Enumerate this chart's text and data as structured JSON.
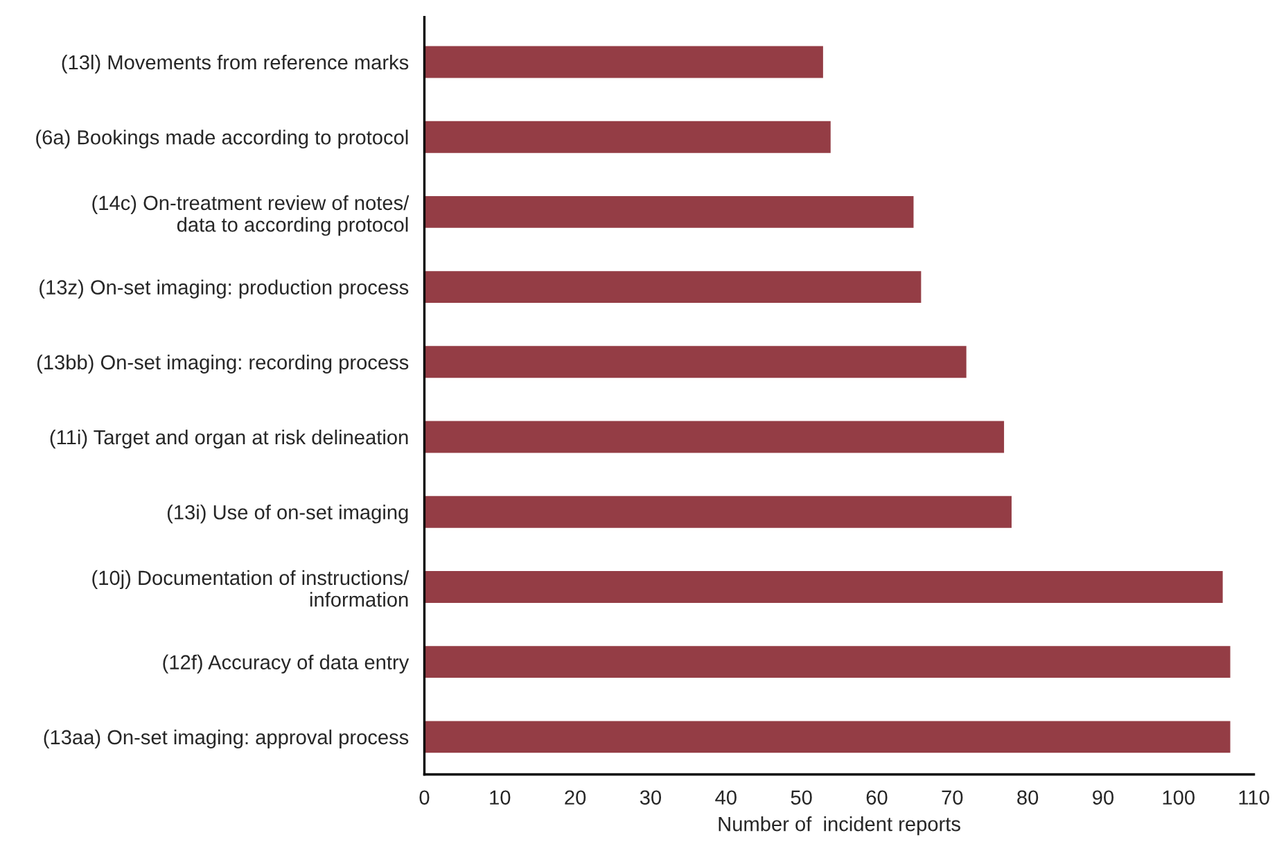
{
  "chart_data": {
    "type": "bar",
    "orientation": "horizontal",
    "categories": [
      "(13l) Movements from reference marks",
      "(6a) Bookings made according to protocol",
      "(14c) On-treatment review of notes/\ndata to according protocol",
      "(13z) On-set imaging: production process",
      "(13bb) On-set imaging: recording process",
      "(11i) Target and organ at risk delineation",
      "(13i) Use of on-set imaging",
      "(10j) Documentation of instructions/\ninformation",
      "(12f) Accuracy of data entry",
      "(13aa) On-set imaging: approval process"
    ],
    "values": [
      53,
      54,
      65,
      66,
      72,
      77,
      78,
      106,
      107,
      107
    ],
    "color": "#943d45",
    "xlabel": "Number of  incident reports",
    "xlim": [
      0,
      110
    ],
    "xticks": [
      0,
      10,
      20,
      30,
      40,
      50,
      60,
      70,
      80,
      90,
      100,
      110
    ],
    "grid": false,
    "legend": false
  }
}
